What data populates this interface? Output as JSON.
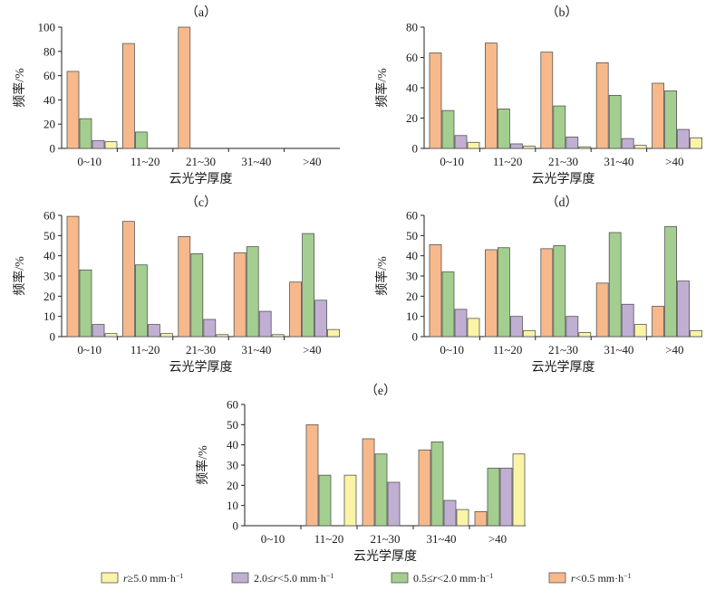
{
  "chart_data": [
    {
      "type": "bar",
      "panel_label": "（a）",
      "categories": [
        "0~10",
        "11~20",
        "21~30",
        "31~40",
        ">40"
      ],
      "xlabel": "云光学厚度",
      "ylabel": "频率/%",
      "ylim": [
        0,
        100
      ],
      "yticks": [
        "0",
        "20",
        "40",
        "60",
        "80",
        "100"
      ],
      "series": [
        {
          "name": "r<0.5 mm·h⁻¹",
          "values": [
            63.5,
            86.5,
            100,
            0,
            0
          ]
        },
        {
          "name": "0.5≤r<2.0 mm·h⁻¹",
          "values": [
            24.5,
            13.5,
            0,
            0,
            0
          ]
        },
        {
          "name": "2.0≤r<5.0 mm·h⁻¹",
          "values": [
            6.5,
            0,
            0,
            0,
            0
          ]
        },
        {
          "name": "r≥5.0 mm·h⁻¹",
          "values": [
            5.5,
            0,
            0,
            0,
            0
          ]
        }
      ]
    },
    {
      "type": "bar",
      "panel_label": "（b）",
      "categories": [
        "0~10",
        "11~20",
        "21~30",
        "31~40",
        ">40"
      ],
      "xlabel": "云光学厚度",
      "ylabel": "频率/%",
      "ylim": [
        0,
        80
      ],
      "yticks": [
        "0",
        "20",
        "40",
        "60",
        "80"
      ],
      "series": [
        {
          "name": "r<0.5 mm·h⁻¹",
          "values": [
            63,
            69.5,
            63.5,
            56.5,
            43
          ]
        },
        {
          "name": "0.5≤r<2.0 mm·h⁻¹",
          "values": [
            25,
            26,
            28,
            35,
            38
          ]
        },
        {
          "name": "2.0≤r<5.0 mm·h⁻¹",
          "values": [
            8.5,
            3,
            7.5,
            6.5,
            12.5
          ]
        },
        {
          "name": "r≥5.0 mm·h⁻¹",
          "values": [
            4,
            1.5,
            1,
            2,
            7
          ]
        }
      ]
    },
    {
      "type": "bar",
      "panel_label": "（c）",
      "categories": [
        "0~10",
        "11~20",
        "21~30",
        "31~40",
        ">40"
      ],
      "xlabel": "云光学厚度",
      "ylabel": "频率/%",
      "ylim": [
        0,
        60
      ],
      "yticks": [
        "0",
        "10",
        "20",
        "30",
        "40",
        "50",
        "60"
      ],
      "series": [
        {
          "name": "r<0.5 mm·h⁻¹",
          "values": [
            59.5,
            57,
            49.5,
            41.5,
            27
          ]
        },
        {
          "name": "0.5≤r<2.0 mm·h⁻¹",
          "values": [
            33,
            35.5,
            41,
            44.5,
            51
          ]
        },
        {
          "name": "2.0≤r<5.0 mm·h⁻¹",
          "values": [
            6,
            6,
            8.5,
            12.5,
            18
          ]
        },
        {
          "name": "r≥5.0 mm·h⁻¹",
          "values": [
            1.5,
            1.5,
            1,
            1,
            3.5
          ]
        }
      ]
    },
    {
      "type": "bar",
      "panel_label": "（d）",
      "categories": [
        "0~10",
        "11~20",
        "21~30",
        "31~40",
        ">40"
      ],
      "xlabel": "云光学厚度",
      "ylabel": "频率/%",
      "ylim": [
        0,
        60
      ],
      "yticks": [
        "0",
        "10",
        "20",
        "30",
        "40",
        "50",
        "60"
      ],
      "series": [
        {
          "name": "r<0.5 mm·h⁻¹",
          "values": [
            45.5,
            43,
            43.5,
            26.5,
            15
          ]
        },
        {
          "name": "0.5≤r<2.0 mm·h⁻¹",
          "values": [
            32,
            44,
            45,
            51.5,
            54.5
          ]
        },
        {
          "name": "2.0≤r<5.0 mm·h⁻¹",
          "values": [
            13.5,
            10,
            10,
            16,
            27.5
          ]
        },
        {
          "name": "r≥5.0 mm·h⁻¹",
          "values": [
            9,
            3,
            2,
            6,
            3
          ]
        }
      ]
    },
    {
      "type": "bar",
      "panel_label": "（e）",
      "categories": [
        "0~10",
        "11~20",
        "21~30",
        "31~40",
        ">40"
      ],
      "xlabel": "云光学厚度",
      "ylabel": "频率/%",
      "ylim": [
        0,
        60
      ],
      "yticks": [
        "0",
        "10",
        "20",
        "30",
        "40",
        "50",
        "60"
      ],
      "series": [
        {
          "name": "r<0.5 mm·h⁻¹",
          "values": [
            0,
            50,
            43,
            37.5,
            7
          ]
        },
        {
          "name": "0.5≤r<2.0 mm·h⁻¹",
          "values": [
            0,
            25,
            35.5,
            41.5,
            28.5
          ]
        },
        {
          "name": "2.0≤r<5.0 mm·h⁻¹",
          "values": [
            0,
            0,
            21.5,
            12.5,
            28.5
          ]
        },
        {
          "name": "r≥5.0 mm·h⁻¹",
          "values": [
            0,
            25,
            0,
            8,
            35.5
          ]
        }
      ]
    }
  ],
  "series_colors": [
    "#f7b98b",
    "#a3ce8f",
    "#c1afd3",
    "#fbf4a6"
  ],
  "legend": {
    "position": "bottom",
    "items": [
      {
        "prefix": "",
        "italic": "r",
        "suffix": "≥5.0 mm·h",
        "sup": "−1",
        "color": "#fbf4a6"
      },
      {
        "prefix": "2.0≤",
        "italic": "r",
        "suffix": "<5.0 mm·h",
        "sup": "−1",
        "color": "#c1afd3"
      },
      {
        "prefix": "0.5≤",
        "italic": "r",
        "suffix": "<2.0 mm·h",
        "sup": "−1",
        "color": "#a3ce8f"
      },
      {
        "prefix": "",
        "italic": "r",
        "suffix": "<0.5 mm·h",
        "sup": "−1",
        "color": "#f7b98b"
      }
    ]
  }
}
